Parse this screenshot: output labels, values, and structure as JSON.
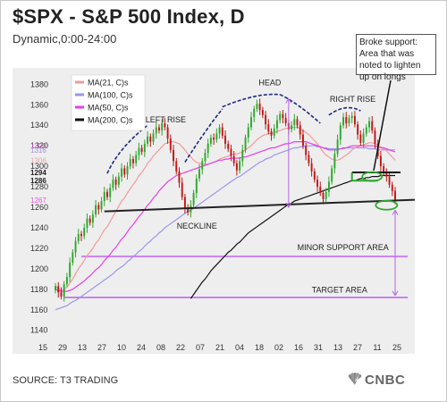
{
  "title": "$SPX - S&P 500 Index, D",
  "subtitle": "Dynamic,0:00-24:00",
  "source": "SOURCE:  T3 TRADING",
  "brand": "CNBC",
  "brand_icon": "nbc-peacock-icon",
  "colors": {
    "ma21": "#f29a9a",
    "ma100": "#9a96ee",
    "ma50": "#e83ee8",
    "ma200": "#111111",
    "support_lines": "#c983ee",
    "candle_up": "#2ea82e",
    "candle_down": "#c01717",
    "neckline": "#222222",
    "pattern_marks": "#1f2a80",
    "highlight": "#2ea82e"
  },
  "annotations": {
    "broke_support": "Broke support: Area that was noted to lighten up on longs",
    "left_rise": "LEFT RISE",
    "head": "HEAD",
    "right_rise": "RIGHT RISE",
    "neckline": "NECKLINE",
    "minor_support": "MINOR SUPPORT AREA",
    "target": "TARGET AREA"
  },
  "chart_data": {
    "type": "candlestick",
    "title": "$SPX - S&P 500 Index, D",
    "subtitle": "Dynamic,0:00-24:00",
    "ylim": [
      1138,
      1396
    ],
    "y_ticks": [
      1140,
      1160,
      1180,
      1200,
      1220,
      1240,
      1260,
      1280,
      1300,
      1320,
      1340,
      1360,
      1380
    ],
    "y_extra_ticks": [
      {
        "value": 1320,
        "label": "1320",
        "color": "#e05ad6"
      },
      {
        "value": 1316,
        "label": "1316",
        "color": "#a58cd8"
      },
      {
        "value": 1306,
        "label": "1306",
        "color": "#e8a7a7"
      },
      {
        "value": 1294,
        "label": "1294",
        "color": "#222222"
      },
      {
        "value": 1286,
        "label": "1286",
        "color": "#222222"
      },
      {
        "value": 1267,
        "label": "1267",
        "color": "#e05ad6"
      }
    ],
    "x_tick_labels": [
      "15",
      "29",
      "13",
      "27",
      "10",
      "24",
      "08",
      "22",
      "07",
      "21",
      "04",
      "18",
      "02",
      "16",
      "31",
      "13",
      "27",
      "11",
      "25"
    ],
    "legend": {
      "position": "top-left",
      "entries": [
        {
          "label": "MA(21, C)s",
          "color": "#f29a9a"
        },
        {
          "label": "MA(100, C)s",
          "color": "#9a96ee"
        },
        {
          "label": "MA(50, C)s",
          "color": "#e83ee8"
        },
        {
          "label": "MA(200, C)s",
          "color": "#111111"
        }
      ]
    },
    "closes": [
      1183,
      1177,
      1173,
      1185,
      1192,
      1206,
      1216,
      1227,
      1234,
      1232,
      1240,
      1249,
      1245,
      1253,
      1262,
      1258,
      1266,
      1275,
      1270,
      1279,
      1287,
      1282,
      1290,
      1298,
      1292,
      1300,
      1307,
      1303,
      1311,
      1318,
      1314,
      1322,
      1329,
      1324,
      1332,
      1338,
      1335,
      1342,
      1338,
      1327,
      1316,
      1305,
      1295,
      1284,
      1270,
      1259,
      1255,
      1262,
      1274,
      1288,
      1297,
      1305,
      1313,
      1322,
      1328,
      1326,
      1332,
      1338,
      1330,
      1322,
      1317,
      1310,
      1303,
      1296,
      1305,
      1316,
      1328,
      1338,
      1348,
      1356,
      1361,
      1355,
      1350,
      1341,
      1334,
      1330,
      1337,
      1345,
      1351,
      1347,
      1342,
      1336,
      1340,
      1346,
      1340,
      1331,
      1320,
      1311,
      1303,
      1295,
      1287,
      1280,
      1274,
      1268,
      1275,
      1285,
      1298,
      1312,
      1326,
      1340,
      1348,
      1342,
      1347,
      1349,
      1341,
      1331,
      1323,
      1332,
      1338,
      1344,
      1335,
      1322,
      1310,
      1300,
      1294,
      1290,
      1282,
      1276,
      1266
    ],
    "ma21": [
      1183,
      1181,
      1179,
      1180,
      1182,
      1186,
      1190,
      1195,
      1200,
      1204,
      1208,
      1213,
      1216,
      1220,
      1225,
      1228,
      1233,
      1238,
      1241,
      1246,
      1251,
      1256,
      1261,
      1266,
      1269,
      1274,
      1278,
      1282,
      1286,
      1291,
      1294,
      1298,
      1303,
      1306,
      1310,
      1313,
      1316,
      1319,
      1322,
      1323,
      1324,
      1324,
      1323,
      1322,
      1319,
      1316,
      1312,
      1309,
      1306,
      1304,
      1303,
      1302,
      1302,
      1302,
      1303,
      1304,
      1305,
      1307,
      1308,
      1309,
      1310,
      1311,
      1312,
      1312,
      1313,
      1314,
      1316,
      1318,
      1320,
      1323,
      1326,
      1328,
      1330,
      1331,
      1332,
      1332,
      1333,
      1334,
      1335,
      1336,
      1337,
      1337,
      1338,
      1338,
      1338,
      1337,
      1335,
      1333,
      1331,
      1328,
      1325,
      1322,
      1318,
      1314,
      1311,
      1309,
      1307,
      1306,
      1306,
      1307,
      1309,
      1311,
      1313,
      1316,
      1318,
      1319,
      1320,
      1321,
      1322,
      1323,
      1323,
      1322,
      1321,
      1319,
      1317,
      1315,
      1312,
      1309,
      1306
    ],
    "ma50": [
      1180,
      1179,
      1178,
      1178,
      1178,
      1179,
      1180,
      1182,
      1184,
      1186,
      1188,
      1191,
      1193,
      1196,
      1199,
      1201,
      1204,
      1208,
      1211,
      1214,
      1218,
      1221,
      1225,
      1229,
      1232,
      1236,
      1240,
      1243,
      1247,
      1251,
      1254,
      1258,
      1262,
      1265,
      1269,
      1272,
      1276,
      1279,
      1282,
      1285,
      1287,
      1289,
      1291,
      1292,
      1293,
      1294,
      1295,
      1296,
      1297,
      1298,
      1299,
      1300,
      1301,
      1302,
      1303,
      1304,
      1305,
      1306,
      1306,
      1307,
      1307,
      1308,
      1308,
      1308,
      1308,
      1309,
      1309,
      1310,
      1311,
      1312,
      1313,
      1314,
      1315,
      1316,
      1317,
      1318,
      1318,
      1319,
      1320,
      1321,
      1322,
      1322,
      1323,
      1324,
      1324,
      1324,
      1324,
      1324,
      1323,
      1322,
      1321,
      1320,
      1319,
      1318,
      1317,
      1316,
      1316,
      1316,
      1316,
      1317,
      1318,
      1318,
      1319,
      1320,
      1320,
      1320,
      1320,
      1320,
      1320,
      1320,
      1320,
      1320,
      1319,
      1318,
      1318,
      1317,
      1316,
      1315,
      1314
    ],
    "ma100": [
      1160,
      1161,
      1162,
      1163,
      1164,
      1166,
      1168,
      1169,
      1171,
      1173,
      1175,
      1177,
      1179,
      1181,
      1183,
      1185,
      1187,
      1189,
      1191,
      1193,
      1195,
      1198,
      1200,
      1202,
      1204,
      1207,
      1209,
      1212,
      1214,
      1217,
      1219,
      1222,
      1225,
      1227,
      1230,
      1232,
      1235,
      1237,
      1240,
      1242,
      1244,
      1246,
      1248,
      1250,
      1252,
      1254,
      1256,
      1257,
      1259,
      1261,
      1263,
      1265,
      1267,
      1269,
      1271,
      1273,
      1275,
      1277,
      1279,
      1281,
      1283,
      1285,
      1287,
      1289,
      1290,
      1292,
      1294,
      1296,
      1298,
      1300,
      1302,
      1304,
      1305,
      1307,
      1308,
      1309,
      1311,
      1312,
      1313,
      1314,
      1315,
      1316,
      1317,
      1318,
      1318,
      1319,
      1319,
      1320,
      1320,
      1320,
      1320,
      1319,
      1319,
      1318,
      1318,
      1317,
      1317,
      1317,
      1317,
      1317,
      1317,
      1318,
      1318,
      1318,
      1318,
      1318,
      1318,
      1318,
      1318,
      1317,
      1317,
      1317,
      1316,
      1316,
      1316,
      1316,
      1316,
      1316,
      1316
    ],
    "ma200": [
      1140,
      1140,
      1140,
      1140,
      1140,
      1140,
      1140,
      1140,
      1140,
      1140,
      1140,
      1140,
      1140,
      1140,
      1140,
      1140,
      1140,
      1140,
      1140,
      1140,
      1140,
      1140,
      1140,
      1140,
      1140,
      1140,
      1140,
      1140,
      1140,
      1140,
      1140,
      1140,
      1140,
      1140,
      1140,
      1140,
      1140,
      1140,
      1140,
      1140,
      1140,
      1140,
      1140,
      1140,
      1140,
      1140,
      1140,
      1171,
      1175,
      1179,
      1183,
      1187,
      1190,
      1194,
      1198,
      1201,
      1204,
      1207,
      1210,
      1213,
      1216,
      1218,
      1221,
      1224,
      1226,
      1229,
      1232,
      1235,
      1237,
      1239,
      1241,
      1243,
      1245,
      1247,
      1249,
      1251,
      1253,
      1255,
      1257,
      1259,
      1261,
      1263,
      1264,
      1266,
      1267,
      1268,
      1269,
      1270,
      1271,
      1272,
      1273,
      1274,
      1275,
      1276,
      1277,
      1278,
      1279,
      1280,
      1281,
      1282,
      1283,
      1284,
      1285,
      1286,
      1286,
      1287,
      1288,
      1288,
      1289,
      1289,
      1290,
      1290,
      1290,
      1291,
      1291,
      1291,
      1291,
      1291,
      1291
    ],
    "neckline": {
      "x": [
        17,
        120
      ],
      "y": [
        1256,
        1263
      ]
    },
    "minor_support": {
      "x": [
        9,
        126
      ],
      "y": [
        1212,
        1212
      ]
    },
    "target": {
      "x": [
        0,
        126
      ],
      "y": [
        1172,
        1172
      ]
    }
  }
}
